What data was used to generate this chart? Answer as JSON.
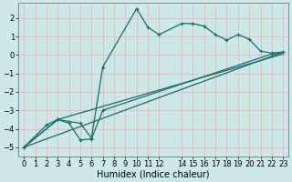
{
  "bg_color": "#cce8e8",
  "grid_color": "#e8b8b8",
  "line_color": "#1a6b6b",
  "xlabel": "Humidex (Indice chaleur)",
  "xlim": [
    -0.5,
    23.5
  ],
  "ylim": [
    -5.5,
    2.8
  ],
  "yticks": [
    -5,
    -4,
    -3,
    -2,
    -1,
    0,
    1,
    2
  ],
  "xtick_positions": [
    0,
    1,
    2,
    3,
    4,
    5,
    6,
    7,
    8,
    9,
    10,
    11,
    12,
    14,
    15,
    16,
    17,
    18,
    19,
    20,
    21,
    22,
    23
  ],
  "xtick_labels": [
    "0",
    "1",
    "2",
    "3",
    "4",
    "5",
    "6",
    "7",
    "8",
    "9",
    "10",
    "11",
    "12",
    "14",
    "15",
    "16",
    "17",
    "18",
    "19",
    "20",
    "21",
    "22",
    "23"
  ],
  "series1_x": [
    0,
    2,
    3,
    5,
    6,
    7,
    10,
    11,
    12,
    14,
    15,
    16,
    17,
    18,
    19,
    20,
    21,
    22,
    23
  ],
  "series1_y": [
    -5.0,
    -3.8,
    -3.5,
    -3.7,
    -4.5,
    -0.65,
    2.5,
    1.5,
    1.1,
    1.7,
    1.7,
    1.55,
    1.1,
    0.8,
    1.1,
    0.85,
    0.2,
    0.1,
    0.15
  ],
  "series2_x": [
    0,
    3,
    4,
    5,
    6,
    7,
    22,
    23
  ],
  "series2_y": [
    -5.0,
    -3.5,
    -3.7,
    -4.6,
    -4.55,
    -3.0,
    0.05,
    0.15
  ],
  "series3_x": [
    0,
    23
  ],
  "series3_y": [
    -5.0,
    0.15
  ],
  "series4_x": [
    0,
    3,
    23
  ],
  "series4_y": [
    -5.0,
    -3.5,
    0.05
  ],
  "marker_size": 2.5,
  "line_width": 0.9,
  "tick_fontsize": 6.0,
  "xlabel_fontsize": 7.0
}
